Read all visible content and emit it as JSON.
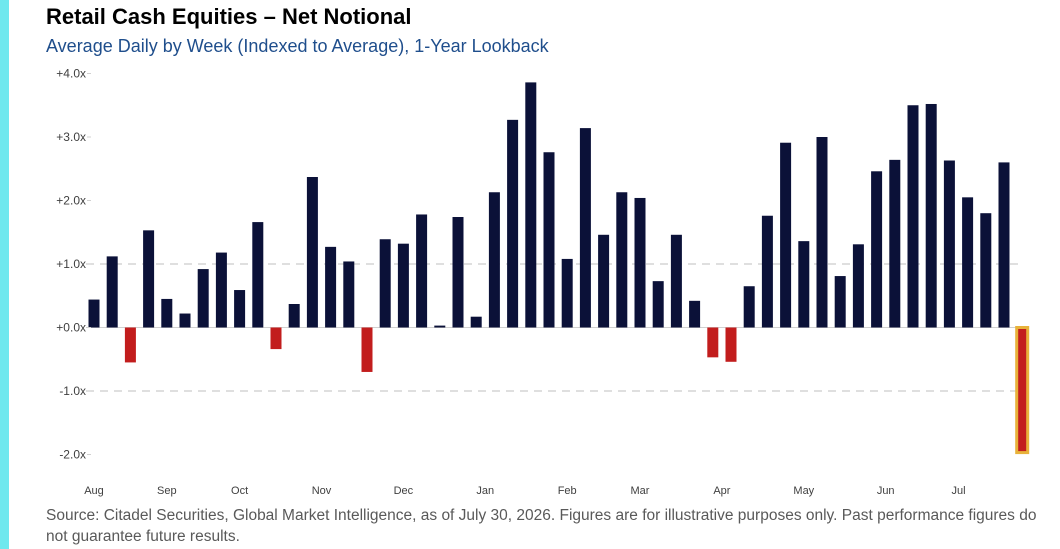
{
  "chart_data": {
    "type": "bar",
    "title": "Retail Cash Equities – Net Notional",
    "subtitle": "Average Daily by Week (Indexed to Average), 1-Year Lookback",
    "xlabel": "",
    "ylabel": "",
    "ylim": [
      -2.0,
      4.0
    ],
    "y_ticks": [
      {
        "value": 4.0,
        "label": "+4.0x"
      },
      {
        "value": 3.0,
        "label": "+3.0x"
      },
      {
        "value": 2.0,
        "label": "+2.0x"
      },
      {
        "value": 1.0,
        "label": "+1.0x"
      },
      {
        "value": 0.0,
        "label": "+0.0x"
      },
      {
        "value": -1.0,
        "label": "-1.0x"
      },
      {
        "value": -2.0,
        "label": "-2.0x"
      }
    ],
    "dashed_gridlines": [
      1.0,
      -1.0
    ],
    "month_labels": [
      {
        "label": "Aug",
        "bar_index": 0
      },
      {
        "label": "Sep",
        "bar_index": 4
      },
      {
        "label": "Oct",
        "bar_index": 8
      },
      {
        "label": "Nov",
        "bar_index": 12.5
      },
      {
        "label": "Dec",
        "bar_index": 17
      },
      {
        "label": "Jan",
        "bar_index": 21.5
      },
      {
        "label": "Feb",
        "bar_index": 26
      },
      {
        "label": "Mar",
        "bar_index": 30
      },
      {
        "label": "Apr",
        "bar_index": 34.5
      },
      {
        "label": "May",
        "bar_index": 39
      },
      {
        "label": "Jun",
        "bar_index": 43.5
      },
      {
        "label": "Jul",
        "bar_index": 47.5
      }
    ],
    "values": [
      0.44,
      1.12,
      -0.55,
      1.53,
      0.45,
      0.22,
      0.92,
      1.18,
      0.59,
      1.66,
      -0.34,
      0.37,
      2.37,
      1.27,
      1.04,
      -0.7,
      1.39,
      1.32,
      1.78,
      0.03,
      1.74,
      0.17,
      2.13,
      3.27,
      3.86,
      2.76,
      1.08,
      3.14,
      1.46,
      2.13,
      2.04,
      0.73,
      1.46,
      0.42,
      -0.47,
      -0.54,
      0.65,
      1.76,
      2.91,
      1.36,
      3.0,
      0.81,
      1.31,
      2.46,
      2.64,
      3.5,
      3.52,
      2.63,
      2.05,
      1.8,
      2.6,
      -1.97
    ],
    "highlight_index": 51,
    "colors": {
      "positive": "#0b1138",
      "negative": "#c21d1d",
      "highlight_stroke": "#e8b23a",
      "accent_bar": "#6fe8ee",
      "subtitle": "#1f4e8c",
      "axis_line": "#d0d0d0",
      "grid_dash": "#cccccc",
      "tick_text": "#404040"
    }
  },
  "footer": {
    "source": "Source: Citadel Securities, Global Market Intelligence, as of July 30, 2026. Figures are for illustrative purposes only. Past performance figures do not guarantee future results."
  }
}
